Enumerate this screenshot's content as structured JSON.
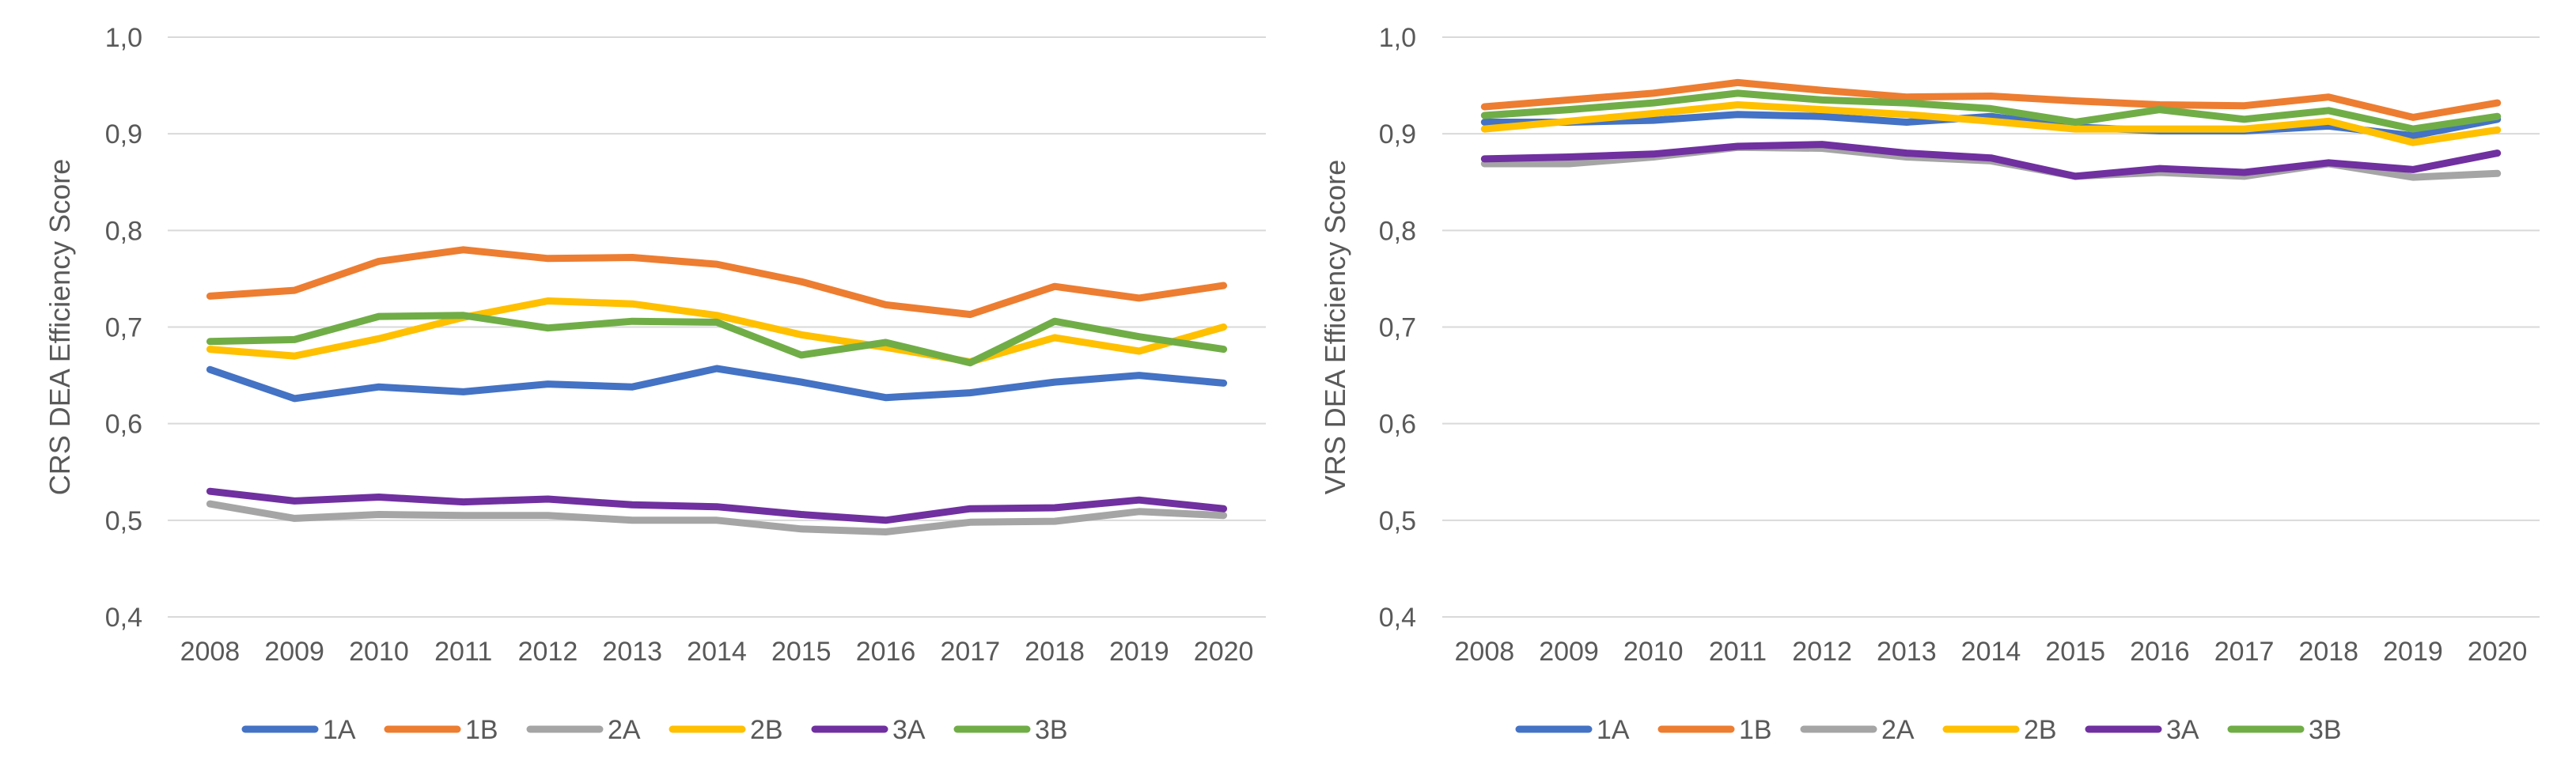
{
  "chart_data": [
    {
      "type": "line",
      "ylabel": "CRS DEA Efficiency Score",
      "xlabel": "",
      "ylim": [
        0.4,
        1.0
      ],
      "y_ticks": [
        "0,4",
        "0,5",
        "0,6",
        "0,7",
        "0,8",
        "0,9",
        "1,0"
      ],
      "categories": [
        "2008",
        "2009",
        "2010",
        "2011",
        "2012",
        "2013",
        "2014",
        "2015",
        "2016",
        "2017",
        "2018",
        "2019",
        "2020"
      ],
      "grid": "horizontal",
      "legend_position": "bottom",
      "series": [
        {
          "name": "1A",
          "color": "#4472C4",
          "values": [
            0.656,
            0.626,
            0.638,
            0.633,
            0.641,
            0.638,
            0.657,
            0.643,
            0.627,
            0.632,
            0.643,
            0.65,
            0.642
          ]
        },
        {
          "name": "1B",
          "color": "#ED7D31",
          "values": [
            0.732,
            0.738,
            0.768,
            0.78,
            0.771,
            0.772,
            0.765,
            0.747,
            0.723,
            0.713,
            0.742,
            0.73,
            0.743
          ]
        },
        {
          "name": "2A",
          "color": "#A5A5A5",
          "values": [
            0.517,
            0.502,
            0.506,
            0.505,
            0.505,
            0.5,
            0.5,
            0.491,
            0.488,
            0.498,
            0.499,
            0.509,
            0.505
          ]
        },
        {
          "name": "2B",
          "color": "#FFC000",
          "values": [
            0.677,
            0.67,
            0.688,
            0.71,
            0.727,
            0.724,
            0.712,
            0.692,
            0.679,
            0.664,
            0.689,
            0.675,
            0.7
          ]
        },
        {
          "name": "3A",
          "color": "#7030A0",
          "values": [
            0.53,
            0.52,
            0.524,
            0.519,
            0.522,
            0.516,
            0.514,
            0.506,
            0.5,
            0.512,
            0.513,
            0.521,
            0.512
          ]
        },
        {
          "name": "3B",
          "color": "#70AD47",
          "values": [
            0.685,
            0.687,
            0.711,
            0.712,
            0.699,
            0.706,
            0.705,
            0.671,
            0.684,
            0.663,
            0.706,
            0.69,
            0.677
          ]
        }
      ]
    },
    {
      "type": "line",
      "ylabel": "VRS DEA Efficiency Score",
      "xlabel": "",
      "ylim": [
        0.4,
        1.0
      ],
      "y_ticks": [
        "0,4",
        "0,5",
        "0,6",
        "0,7",
        "0,8",
        "0,9",
        "1,0"
      ],
      "categories": [
        "2008",
        "2009",
        "2010",
        "2011",
        "2012",
        "2013",
        "2014",
        "2015",
        "2016",
        "2017",
        "2018",
        "2019",
        "2020"
      ],
      "grid": "horizontal",
      "legend_position": "bottom",
      "series": [
        {
          "name": "1A",
          "color": "#4472C4",
          "values": [
            0.912,
            0.912,
            0.914,
            0.92,
            0.918,
            0.912,
            0.918,
            0.907,
            0.903,
            0.903,
            0.908,
            0.898,
            0.915
          ]
        },
        {
          "name": "1B",
          "color": "#ED7D31",
          "values": [
            0.928,
            0.935,
            0.942,
            0.953,
            0.945,
            0.938,
            0.939,
            0.934,
            0.93,
            0.929,
            0.938,
            0.917,
            0.932
          ]
        },
        {
          "name": "2A",
          "color": "#A5A5A5",
          "values": [
            0.869,
            0.869,
            0.876,
            0.886,
            0.885,
            0.876,
            0.872,
            0.856,
            0.86,
            0.856,
            0.869,
            0.855,
            0.859
          ]
        },
        {
          "name": "2B",
          "color": "#FFC000",
          "values": [
            0.905,
            0.913,
            0.921,
            0.93,
            0.925,
            0.92,
            0.913,
            0.905,
            0.905,
            0.905,
            0.913,
            0.891,
            0.904
          ]
        },
        {
          "name": "3A",
          "color": "#7030A0",
          "values": [
            0.874,
            0.876,
            0.879,
            0.887,
            0.889,
            0.88,
            0.875,
            0.856,
            0.864,
            0.86,
            0.87,
            0.863,
            0.88
          ]
        },
        {
          "name": "3B",
          "color": "#70AD47",
          "values": [
            0.919,
            0.925,
            0.932,
            0.942,
            0.935,
            0.932,
            0.926,
            0.912,
            0.925,
            0.915,
            0.924,
            0.905,
            0.918
          ]
        }
      ]
    }
  ]
}
